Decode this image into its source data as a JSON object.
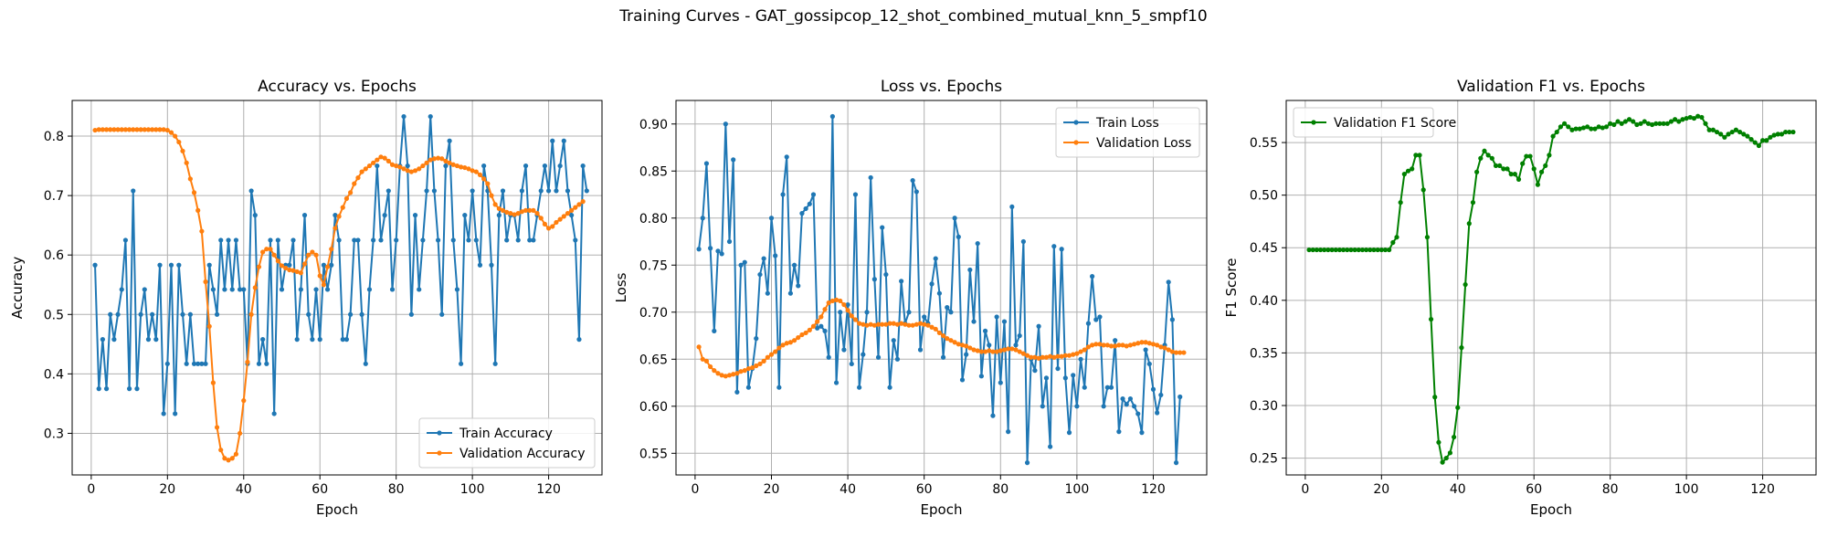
{
  "suptitle": "Training Curves - GAT_gossipcop_12_shot_combined_mutual_knn_5_smpf10",
  "chart_data": [
    {
      "type": "line",
      "title": "Accuracy vs. Epochs",
      "xlabel": "Epoch",
      "ylabel": "Accuracy",
      "xlim": [
        -5,
        134
      ],
      "ylim": [
        0.23,
        0.86
      ],
      "xticks": [
        0,
        20,
        40,
        60,
        80,
        100,
        120
      ],
      "yticks": [
        0.3,
        0.4,
        0.5,
        0.6,
        0.7,
        0.8
      ],
      "ytick_labels": [
        "0.3",
        "0.4",
        "0.5",
        "0.6",
        "0.7",
        "0.8"
      ],
      "grid": true,
      "legend_position": "lower-right",
      "series": [
        {
          "name": "Train Accuracy",
          "color": "#1f77b4",
          "values": [
            0.583,
            0.375,
            0.458,
            0.375,
            0.5,
            0.458,
            0.5,
            0.542,
            0.625,
            0.375,
            0.708,
            0.375,
            0.5,
            0.542,
            0.458,
            0.5,
            0.458,
            0.583,
            0.333,
            0.417,
            0.583,
            0.333,
            0.583,
            0.5,
            0.417,
            0.5,
            0.417,
            0.417,
            0.417,
            0.417,
            0.583,
            0.542,
            0.5,
            0.625,
            0.542,
            0.625,
            0.542,
            0.625,
            0.542,
            0.542,
            0.417,
            0.708,
            0.667,
            0.417,
            0.458,
            0.417,
            0.625,
            0.333,
            0.625,
            0.542,
            0.583,
            0.583,
            0.625,
            0.458,
            0.542,
            0.667,
            0.5,
            0.458,
            0.542,
            0.458,
            0.583,
            0.542,
            0.583,
            0.667,
            0.625,
            0.458,
            0.458,
            0.5,
            0.625,
            0.625,
            0.5,
            0.417,
            0.542,
            0.625,
            0.75,
            0.625,
            0.667,
            0.708,
            0.542,
            0.625,
            0.75,
            0.833,
            0.75,
            0.5,
            0.667,
            0.542,
            0.625,
            0.708,
            0.833,
            0.708,
            0.625,
            0.5,
            0.75,
            0.792,
            0.625,
            0.542,
            0.417,
            0.667,
            0.625,
            0.708,
            0.625,
            0.583,
            0.75,
            0.708,
            0.583,
            0.417,
            0.667,
            0.708,
            0.625,
            0.667,
            0.667,
            0.625,
            0.708,
            0.75,
            0.625,
            0.625,
            0.667,
            0.708,
            0.75,
            0.708,
            0.792,
            0.708,
            0.75,
            0.792,
            0.708,
            0.667,
            0.625,
            0.458,
            0.75,
            0.708
          ]
        },
        {
          "name": "Validation Accuracy",
          "color": "#ff7f0e",
          "values": [
            0.81,
            0.811,
            0.811,
            0.811,
            0.811,
            0.811,
            0.811,
            0.811,
            0.811,
            0.811,
            0.811,
            0.811,
            0.811,
            0.811,
            0.811,
            0.811,
            0.811,
            0.811,
            0.811,
            0.81,
            0.806,
            0.8,
            0.79,
            0.775,
            0.755,
            0.728,
            0.705,
            0.675,
            0.64,
            0.555,
            0.48,
            0.385,
            0.31,
            0.272,
            0.258,
            0.255,
            0.258,
            0.265,
            0.3,
            0.355,
            0.42,
            0.5,
            0.545,
            0.58,
            0.605,
            0.61,
            0.61,
            0.6,
            0.59,
            0.582,
            0.578,
            0.575,
            0.574,
            0.572,
            0.57,
            0.585,
            0.6,
            0.605,
            0.6,
            0.565,
            0.55,
            0.58,
            0.61,
            0.645,
            0.665,
            0.68,
            0.695,
            0.705,
            0.72,
            0.73,
            0.74,
            0.745,
            0.75,
            0.755,
            0.76,
            0.765,
            0.763,
            0.758,
            0.752,
            0.75,
            0.748,
            0.745,
            0.742,
            0.74,
            0.742,
            0.745,
            0.75,
            0.755,
            0.76,
            0.762,
            0.763,
            0.762,
            0.758,
            0.755,
            0.752,
            0.75,
            0.748,
            0.747,
            0.745,
            0.742,
            0.74,
            0.735,
            0.728,
            0.72,
            0.7,
            0.685,
            0.678,
            0.675,
            0.672,
            0.67,
            0.668,
            0.67,
            0.673,
            0.675,
            0.675,
            0.675,
            0.67,
            0.662,
            0.652,
            0.645,
            0.648,
            0.655,
            0.66,
            0.665,
            0.67,
            0.675,
            0.68,
            0.685,
            0.69
          ]
        }
      ]
    },
    {
      "type": "line",
      "title": "Loss vs. Epochs",
      "xlabel": "Epoch",
      "ylabel": "Loss",
      "xlim": [
        -5,
        134
      ],
      "ylim": [
        0.527,
        0.925
      ],
      "xticks": [
        0,
        20,
        40,
        60,
        80,
        100,
        120
      ],
      "yticks": [
        0.55,
        0.6,
        0.65,
        0.7,
        0.75,
        0.8,
        0.85,
        0.9
      ],
      "ytick_labels": [
        "0.55",
        "0.60",
        "0.65",
        "0.70",
        "0.75",
        "0.80",
        "0.85",
        "0.90"
      ],
      "grid": true,
      "legend_position": "upper-right",
      "series": [
        {
          "name": "Train Loss",
          "color": "#1f77b4",
          "values": [
            0.767,
            0.8,
            0.858,
            0.768,
            0.68,
            0.765,
            0.762,
            0.9,
            0.775,
            0.862,
            0.615,
            0.75,
            0.753,
            0.62,
            0.64,
            0.672,
            0.74,
            0.757,
            0.72,
            0.8,
            0.76,
            0.62,
            0.825,
            0.865,
            0.72,
            0.75,
            0.728,
            0.805,
            0.81,
            0.815,
            0.825,
            0.683,
            0.685,
            0.68,
            0.652,
            0.908,
            0.625,
            0.7,
            0.66,
            0.708,
            0.645,
            0.825,
            0.62,
            0.655,
            0.7,
            0.843,
            0.735,
            0.652,
            0.79,
            0.74,
            0.62,
            0.67,
            0.65,
            0.733,
            0.688,
            0.7,
            0.84,
            0.828,
            0.66,
            0.695,
            0.688,
            0.73,
            0.757,
            0.72,
            0.652,
            0.705,
            0.7,
            0.8,
            0.78,
            0.628,
            0.655,
            0.745,
            0.69,
            0.773,
            0.632,
            0.68,
            0.665,
            0.59,
            0.695,
            0.625,
            0.69,
            0.573,
            0.812,
            0.665,
            0.675,
            0.775,
            0.54,
            0.65,
            0.638,
            0.685,
            0.6,
            0.63,
            0.557,
            0.77,
            0.64,
            0.767,
            0.63,
            0.572,
            0.633,
            0.6,
            0.65,
            0.62,
            0.688,
            0.738,
            0.692,
            0.695,
            0.6,
            0.62,
            0.62,
            0.67,
            0.573,
            0.608,
            0.602,
            0.608,
            0.6,
            0.592,
            0.572,
            0.66,
            0.645,
            0.618,
            0.593,
            0.612,
            0.665,
            0.732,
            0.692,
            0.54,
            0.61
          ]
        },
        {
          "name": "Validation Loss",
          "color": "#ff7f0e",
          "values": [
            0.663,
            0.65,
            0.648,
            0.642,
            0.638,
            0.635,
            0.633,
            0.632,
            0.633,
            0.634,
            0.635,
            0.637,
            0.638,
            0.64,
            0.641,
            0.643,
            0.645,
            0.648,
            0.652,
            0.655,
            0.658,
            0.662,
            0.665,
            0.667,
            0.668,
            0.67,
            0.673,
            0.676,
            0.678,
            0.681,
            0.685,
            0.69,
            0.695,
            0.703,
            0.71,
            0.712,
            0.713,
            0.712,
            0.708,
            0.702,
            0.696,
            0.692,
            0.688,
            0.687,
            0.686,
            0.687,
            0.686,
            0.687,
            0.687,
            0.687,
            0.688,
            0.688,
            0.687,
            0.688,
            0.687,
            0.686,
            0.686,
            0.687,
            0.688,
            0.687,
            0.686,
            0.684,
            0.682,
            0.678,
            0.675,
            0.672,
            0.67,
            0.668,
            0.666,
            0.665,
            0.664,
            0.662,
            0.66,
            0.659,
            0.658,
            0.658,
            0.659,
            0.658,
            0.658,
            0.659,
            0.66,
            0.661,
            0.661,
            0.66,
            0.658,
            0.656,
            0.654,
            0.652,
            0.652,
            0.651,
            0.652,
            0.652,
            0.653,
            0.652,
            0.653,
            0.653,
            0.654,
            0.654,
            0.655,
            0.656,
            0.658,
            0.66,
            0.663,
            0.665,
            0.666,
            0.666,
            0.665,
            0.665,
            0.664,
            0.664,
            0.665,
            0.665,
            0.664,
            0.665,
            0.666,
            0.667,
            0.668,
            0.668,
            0.667,
            0.666,
            0.665,
            0.663,
            0.662,
            0.66,
            0.658,
            0.657,
            0.657,
            0.657
          ]
        }
      ]
    },
    {
      "type": "line",
      "title": "Validation F1 vs. Epochs",
      "xlabel": "Epoch",
      "ylabel": "F1 Score",
      "xlim": [
        -5,
        134
      ],
      "ylim": [
        0.234,
        0.59
      ],
      "xticks": [
        0,
        20,
        40,
        60,
        80,
        100,
        120
      ],
      "yticks": [
        0.25,
        0.3,
        0.35,
        0.4,
        0.45,
        0.5,
        0.55
      ],
      "ytick_labels": [
        "0.25",
        "0.30",
        "0.35",
        "0.40",
        "0.45",
        "0.50",
        "0.55"
      ],
      "grid": true,
      "legend_position": "upper-left",
      "series": [
        {
          "name": "Validation F1 Score",
          "color": "#008000",
          "values": [
            0.448,
            0.448,
            0.448,
            0.448,
            0.448,
            0.448,
            0.448,
            0.448,
            0.448,
            0.448,
            0.448,
            0.448,
            0.448,
            0.448,
            0.448,
            0.448,
            0.448,
            0.448,
            0.448,
            0.448,
            0.448,
            0.448,
            0.455,
            0.46,
            0.493,
            0.52,
            0.523,
            0.525,
            0.538,
            0.538,
            0.505,
            0.46,
            0.382,
            0.308,
            0.265,
            0.246,
            0.25,
            0.255,
            0.27,
            0.298,
            0.355,
            0.415,
            0.473,
            0.493,
            0.522,
            0.535,
            0.542,
            0.538,
            0.535,
            0.528,
            0.528,
            0.525,
            0.525,
            0.52,
            0.52,
            0.515,
            0.53,
            0.537,
            0.537,
            0.525,
            0.51,
            0.522,
            0.528,
            0.538,
            0.556,
            0.56,
            0.565,
            0.568,
            0.565,
            0.562,
            0.563,
            0.563,
            0.564,
            0.565,
            0.563,
            0.563,
            0.565,
            0.564,
            0.565,
            0.568,
            0.567,
            0.57,
            0.568,
            0.57,
            0.572,
            0.57,
            0.567,
            0.568,
            0.57,
            0.568,
            0.567,
            0.568,
            0.568,
            0.568,
            0.568,
            0.57,
            0.572,
            0.57,
            0.572,
            0.573,
            0.574,
            0.573,
            0.575,
            0.574,
            0.568,
            0.562,
            0.562,
            0.56,
            0.558,
            0.555,
            0.558,
            0.56,
            0.562,
            0.56,
            0.558,
            0.556,
            0.553,
            0.55,
            0.547,
            0.552,
            0.552,
            0.555,
            0.557,
            0.558,
            0.558,
            0.56,
            0.56,
            0.56
          ]
        }
      ]
    }
  ]
}
